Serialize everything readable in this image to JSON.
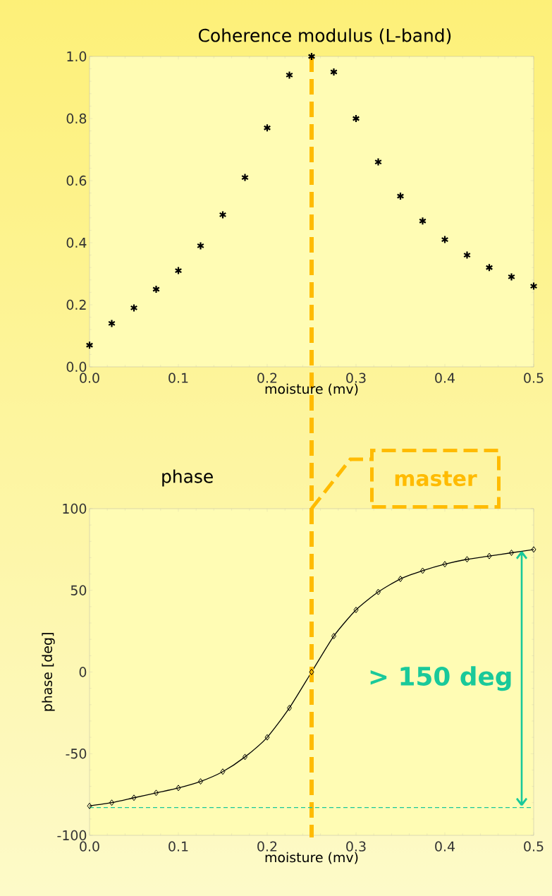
{
  "chart_data": [
    {
      "type": "scatter",
      "title": "Coherence modulus (L-band)",
      "xlabel": "moisture (mv)",
      "x": [
        0,
        0.025,
        0.05,
        0.075,
        0.1,
        0.125,
        0.15,
        0.175,
        0.2,
        0.225,
        0.25,
        0.275,
        0.3,
        0.325,
        0.35,
        0.375,
        0.4,
        0.425,
        0.45,
        0.475,
        0.5
      ],
      "series": [
        {
          "color": "#000000",
          "values": [
            0.07,
            0.14,
            0.19,
            0.25,
            0.31,
            0.39,
            0.49,
            0.61,
            0.77,
            0.94,
            1.0,
            0.95,
            0.8,
            0.66,
            0.55,
            0.47,
            0.41,
            0.36,
            0.32,
            0.29,
            0.26
          ]
        }
      ],
      "marker": "cross",
      "xlim": [
        0,
        0.5
      ],
      "ylim": [
        0,
        1.0
      ],
      "xticks": [
        {
          "value": 0,
          "label": "0.0"
        },
        0.1,
        0.2,
        0.3,
        0.4,
        0.5
      ],
      "yticks": [
        {
          "value": 0,
          "label": "0.0"
        },
        0.2,
        0.4,
        0.6,
        0.8,
        {
          "value": 1,
          "label": "1.0"
        }
      ],
      "ref_lines": [
        {
          "axis": "x",
          "value": 0.25,
          "color": "#ffbb00",
          "line_style": "dashed"
        }
      ]
    },
    {
      "type": "line",
      "title": "phase",
      "xlabel": "moisture (mv)",
      "ylabel": "phase [deg]",
      "x": [
        0,
        0.025,
        0.05,
        0.075,
        0.1,
        0.125,
        0.15,
        0.175,
        0.2,
        0.225,
        0.25,
        0.275,
        0.3,
        0.325,
        0.35,
        0.375,
        0.4,
        0.425,
        0.45,
        0.475,
        0.5
      ],
      "series": [
        {
          "color": "#000000",
          "values": [
            -82,
            -80,
            -77,
            -74,
            -71,
            -67,
            -61,
            -52,
            -40,
            -22,
            0,
            22,
            38,
            49,
            57,
            62,
            66,
            69,
            71,
            73,
            75
          ]
        }
      ],
      "marker": "diamond",
      "line_style": "solid",
      "xlim": [
        0,
        0.5
      ],
      "ylim": [
        -100,
        100
      ],
      "xticks": [
        {
          "value": 0,
          "label": "0.0"
        },
        0.1,
        0.2,
        0.3,
        0.4,
        0.5
      ],
      "yticks": [
        -100,
        -50,
        0,
        50,
        100
      ],
      "ref_lines": [
        {
          "axis": "x",
          "value": 0.25,
          "color": "#ffbb00",
          "line_style": "dashed"
        },
        {
          "axis": "y",
          "value": -83,
          "color": "#19c99a",
          "line_style": "dashed"
        }
      ],
      "annotations": [
        "master",
        "> 150 deg"
      ]
    }
  ]
}
